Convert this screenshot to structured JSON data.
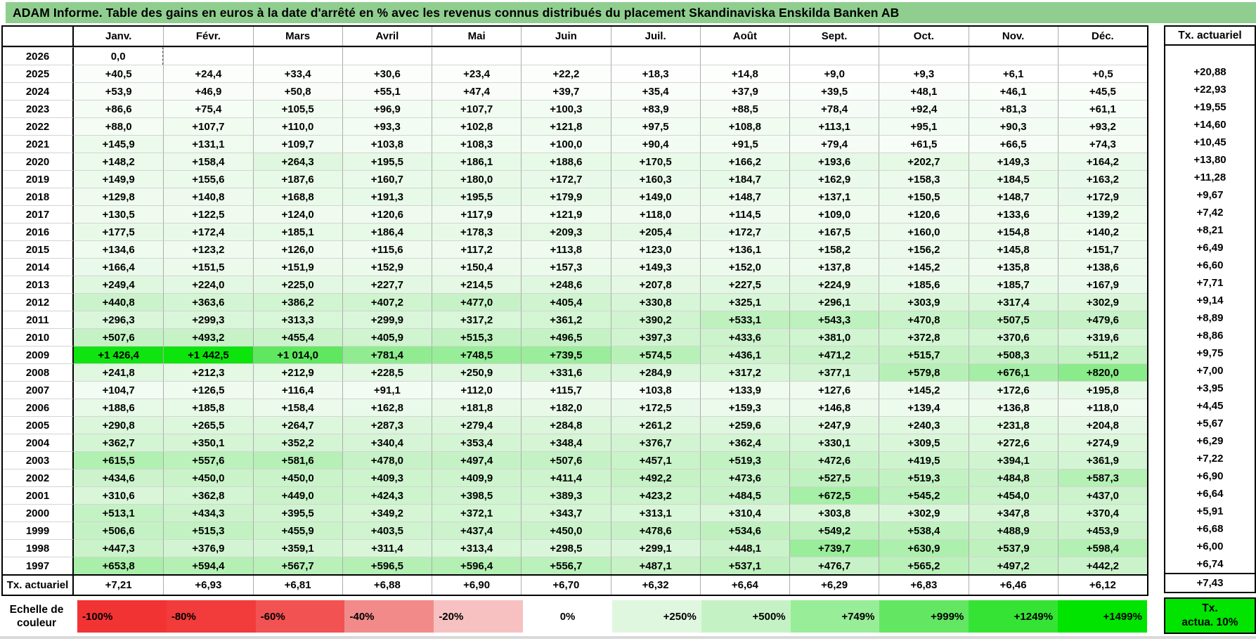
{
  "title": "ADAM Informe. Table des gains en euros à la date d'arrêté en % avec les revenus connus distribués du placement Skandinaviska Enskilda Banken AB",
  "colors": {
    "title_bar_bg": "#8FCE8F",
    "table_border": "#000000",
    "grid_line_vertical": "#ACACAC",
    "grid_line_horizontal": "#D4D4D4",
    "actuarial_box_bg": "#00E400"
  },
  "chart_data": {
    "type": "table",
    "title": "ADAM Informe. Table des gains en euros à la date d'arrêté en % avec les revenus connus distribués du placement Skandinaviska Enskilda Banken AB",
    "columns": [
      "Janv.",
      "Févr.",
      "Mars",
      "Avril",
      "Mai",
      "Juin",
      "Juil.",
      "Août",
      "Sept.",
      "Oct.",
      "Nov.",
      "Déc."
    ],
    "right_column_header": "Tx. actuariel",
    "rows": [
      {
        "year": "2026",
        "values": [
          "0,0",
          "",
          "",
          "",
          "",
          "",
          "",
          "",
          "",
          "",
          "",
          ""
        ],
        "tx": ""
      },
      {
        "year": "2025",
        "values": [
          "+40,5",
          "+24,4",
          "+33,4",
          "+30,6",
          "+23,4",
          "+22,2",
          "+18,3",
          "+14,8",
          "+9,0",
          "+9,3",
          "+6,1",
          "+0,5"
        ],
        "tx": "+20,88"
      },
      {
        "year": "2024",
        "values": [
          "+53,9",
          "+46,9",
          "+50,8",
          "+55,1",
          "+47,4",
          "+39,7",
          "+35,4",
          "+37,9",
          "+39,5",
          "+48,1",
          "+46,1",
          "+45,5"
        ],
        "tx": "+22,93"
      },
      {
        "year": "2023",
        "values": [
          "+86,6",
          "+75,4",
          "+105,5",
          "+96,9",
          "+107,7",
          "+100,3",
          "+83,9",
          "+88,5",
          "+78,4",
          "+92,4",
          "+81,3",
          "+61,1"
        ],
        "tx": "+19,55"
      },
      {
        "year": "2022",
        "values": [
          "+88,0",
          "+107,7",
          "+110,0",
          "+93,3",
          "+102,8",
          "+121,8",
          "+97,5",
          "+108,8",
          "+113,1",
          "+95,1",
          "+90,3",
          "+93,2"
        ],
        "tx": "+14,60"
      },
      {
        "year": "2021",
        "values": [
          "+145,9",
          "+131,1",
          "+109,7",
          "+103,8",
          "+108,3",
          "+100,0",
          "+90,4",
          "+91,5",
          "+79,4",
          "+61,5",
          "+66,5",
          "+74,3"
        ],
        "tx": "+10,45"
      },
      {
        "year": "2020",
        "values": [
          "+148,2",
          "+158,4",
          "+264,3",
          "+195,5",
          "+186,1",
          "+188,6",
          "+170,5",
          "+166,2",
          "+193,6",
          "+202,7",
          "+149,3",
          "+164,2"
        ],
        "tx": "+13,80"
      },
      {
        "year": "2019",
        "values": [
          "+149,9",
          "+155,6",
          "+187,6",
          "+160,7",
          "+180,0",
          "+172,7",
          "+160,3",
          "+184,7",
          "+162,9",
          "+158,3",
          "+184,5",
          "+163,2"
        ],
        "tx": "+11,28"
      },
      {
        "year": "2018",
        "values": [
          "+129,8",
          "+140,8",
          "+168,8",
          "+191,3",
          "+195,5",
          "+179,9",
          "+149,0",
          "+148,7",
          "+137,1",
          "+150,5",
          "+148,7",
          "+172,9"
        ],
        "tx": "+9,67"
      },
      {
        "year": "2017",
        "values": [
          "+130,5",
          "+122,5",
          "+124,0",
          "+120,6",
          "+117,9",
          "+121,9",
          "+118,0",
          "+114,5",
          "+109,0",
          "+120,6",
          "+133,6",
          "+139,2"
        ],
        "tx": "+7,42"
      },
      {
        "year": "2016",
        "values": [
          "+177,5",
          "+172,4",
          "+185,1",
          "+186,4",
          "+178,3",
          "+209,3",
          "+205,4",
          "+172,7",
          "+167,5",
          "+160,0",
          "+154,8",
          "+140,2"
        ],
        "tx": "+8,21"
      },
      {
        "year": "2015",
        "values": [
          "+134,6",
          "+123,2",
          "+126,0",
          "+115,6",
          "+117,2",
          "+113,8",
          "+123,0",
          "+136,1",
          "+158,2",
          "+156,2",
          "+145,8",
          "+151,7"
        ],
        "tx": "+6,49"
      },
      {
        "year": "2014",
        "values": [
          "+166,4",
          "+151,5",
          "+151,9",
          "+152,9",
          "+150,4",
          "+157,3",
          "+149,3",
          "+152,0",
          "+137,8",
          "+145,2",
          "+135,8",
          "+138,6"
        ],
        "tx": "+6,60"
      },
      {
        "year": "2013",
        "values": [
          "+249,4",
          "+224,0",
          "+225,0",
          "+227,7",
          "+214,5",
          "+248,6",
          "+207,8",
          "+227,5",
          "+224,9",
          "+185,6",
          "+185,7",
          "+167,9"
        ],
        "tx": "+7,71"
      },
      {
        "year": "2012",
        "values": [
          "+440,8",
          "+363,6",
          "+386,2",
          "+407,2",
          "+477,0",
          "+405,4",
          "+330,8",
          "+325,1",
          "+296,1",
          "+303,9",
          "+317,4",
          "+302,9"
        ],
        "tx": "+9,14"
      },
      {
        "year": "2011",
        "values": [
          "+296,3",
          "+299,3",
          "+313,3",
          "+299,9",
          "+317,2",
          "+361,2",
          "+390,2",
          "+533,1",
          "+543,3",
          "+470,8",
          "+507,5",
          "+479,6"
        ],
        "tx": "+8,89"
      },
      {
        "year": "2010",
        "values": [
          "+507,6",
          "+493,2",
          "+455,4",
          "+405,9",
          "+515,3",
          "+496,5",
          "+397,3",
          "+433,6",
          "+381,0",
          "+372,8",
          "+370,6",
          "+319,6"
        ],
        "tx": "+8,86"
      },
      {
        "year": "2009",
        "values": [
          "+1 426,4",
          "+1 442,5",
          "+1 014,0",
          "+781,4",
          "+748,5",
          "+739,5",
          "+574,5",
          "+436,1",
          "+471,2",
          "+515,7",
          "+508,3",
          "+511,2"
        ],
        "tx": "+9,75"
      },
      {
        "year": "2008",
        "values": [
          "+241,8",
          "+212,3",
          "+212,9",
          "+228,5",
          "+250,9",
          "+331,6",
          "+284,9",
          "+317,2",
          "+377,1",
          "+579,8",
          "+676,1",
          "+820,0"
        ],
        "tx": "+7,00"
      },
      {
        "year": "2007",
        "values": [
          "+104,7",
          "+126,5",
          "+116,4",
          "+91,1",
          "+112,0",
          "+115,7",
          "+103,8",
          "+133,9",
          "+127,6",
          "+145,2",
          "+172,6",
          "+195,8"
        ],
        "tx": "+3,95"
      },
      {
        "year": "2006",
        "values": [
          "+188,6",
          "+185,8",
          "+158,4",
          "+162,8",
          "+181,8",
          "+182,0",
          "+172,5",
          "+159,3",
          "+146,8",
          "+139,4",
          "+136,8",
          "+118,0"
        ],
        "tx": "+4,45"
      },
      {
        "year": "2005",
        "values": [
          "+290,8",
          "+265,5",
          "+264,7",
          "+287,3",
          "+279,4",
          "+284,8",
          "+261,2",
          "+259,6",
          "+247,9",
          "+240,3",
          "+231,8",
          "+204,8"
        ],
        "tx": "+5,67"
      },
      {
        "year": "2004",
        "values": [
          "+362,7",
          "+350,1",
          "+352,2",
          "+340,4",
          "+353,4",
          "+348,4",
          "+376,7",
          "+362,4",
          "+330,1",
          "+309,5",
          "+272,6",
          "+274,9"
        ],
        "tx": "+6,29"
      },
      {
        "year": "2003",
        "values": [
          "+615,5",
          "+557,6",
          "+581,6",
          "+478,0",
          "+497,4",
          "+507,6",
          "+457,1",
          "+519,3",
          "+472,6",
          "+419,5",
          "+394,1",
          "+361,9"
        ],
        "tx": "+7,22"
      },
      {
        "year": "2002",
        "values": [
          "+434,6",
          "+450,0",
          "+450,0",
          "+409,3",
          "+409,9",
          "+411,4",
          "+492,2",
          "+473,6",
          "+527,5",
          "+519,3",
          "+484,8",
          "+587,3"
        ],
        "tx": "+6,90"
      },
      {
        "year": "2001",
        "values": [
          "+310,6",
          "+362,8",
          "+449,0",
          "+424,3",
          "+398,5",
          "+389,3",
          "+423,2",
          "+484,5",
          "+672,5",
          "+545,2",
          "+454,0",
          "+437,0"
        ],
        "tx": "+6,64"
      },
      {
        "year": "2000",
        "values": [
          "+513,1",
          "+434,3",
          "+395,5",
          "+349,2",
          "+372,1",
          "+343,7",
          "+313,1",
          "+310,4",
          "+303,8",
          "+302,9",
          "+347,8",
          "+370,4"
        ],
        "tx": "+5,91"
      },
      {
        "year": "1999",
        "values": [
          "+506,6",
          "+515,3",
          "+455,9",
          "+403,5",
          "+437,4",
          "+450,0",
          "+478,6",
          "+534,6",
          "+549,2",
          "+538,4",
          "+488,9",
          "+453,9"
        ],
        "tx": "+6,68"
      },
      {
        "year": "1998",
        "values": [
          "+447,3",
          "+376,9",
          "+359,1",
          "+311,4",
          "+313,4",
          "+298,5",
          "+299,1",
          "+448,1",
          "+739,7",
          "+630,9",
          "+537,9",
          "+598,4"
        ],
        "tx": "+6,00"
      },
      {
        "year": "1997",
        "values": [
          "+653,8",
          "+594,4",
          "+567,7",
          "+596,5",
          "+596,4",
          "+556,7",
          "+487,1",
          "+537,1",
          "+476,7",
          "+565,2",
          "+497,2",
          "+442,2"
        ],
        "tx": "+6,74"
      }
    ],
    "footer_row": {
      "label": "Tx. actuariel",
      "values": [
        "+7,21",
        "+6,93",
        "+6,81",
        "+6,88",
        "+6,90",
        "+6,70",
        "+6,32",
        "+6,64",
        "+6,29",
        "+6,83",
        "+6,46",
        "+6,12"
      ],
      "tx": "+7,43"
    },
    "color_scale_stops": [
      [
        0,
        "#FFFFFF"
      ],
      [
        250,
        "#DFF7DF"
      ],
      [
        500,
        "#C5F2C5"
      ],
      [
        750,
        "#98ED98"
      ],
      [
        1000,
        "#63E763"
      ],
      [
        1250,
        "#35E335"
      ],
      [
        1500,
        "#00E400"
      ]
    ],
    "legend": {
      "label": "Echelle de couleur",
      "items": [
        {
          "label": "-100%",
          "color": "#F23333",
          "align": "left"
        },
        {
          "label": "-80%",
          "color": "#F23B3B",
          "align": "left"
        },
        {
          "label": "-60%",
          "color": "#F25252",
          "align": "left"
        },
        {
          "label": "-40%",
          "color": "#F28A8A",
          "align": "left"
        },
        {
          "label": "-20%",
          "color": "#F7C1C1",
          "align": "left"
        },
        {
          "label": "0%",
          "color": "#FFFFFF",
          "align": "center"
        },
        {
          "label": "+250%",
          "color": "#DFF7DF",
          "align": "right"
        },
        {
          "label": "+500%",
          "color": "#C5F2C5",
          "align": "right"
        },
        {
          "label": "+749%",
          "color": "#98ED98",
          "align": "right"
        },
        {
          "label": "+999%",
          "color": "#63E763",
          "align": "right"
        },
        {
          "label": "+1249%",
          "color": "#35E335",
          "align": "right"
        },
        {
          "label": "+1499%",
          "color": "#00E400",
          "align": "right"
        }
      ],
      "actuarial_box": {
        "line1": "Tx.",
        "line2": "actua. 10%",
        "color": "#00E400"
      }
    }
  }
}
